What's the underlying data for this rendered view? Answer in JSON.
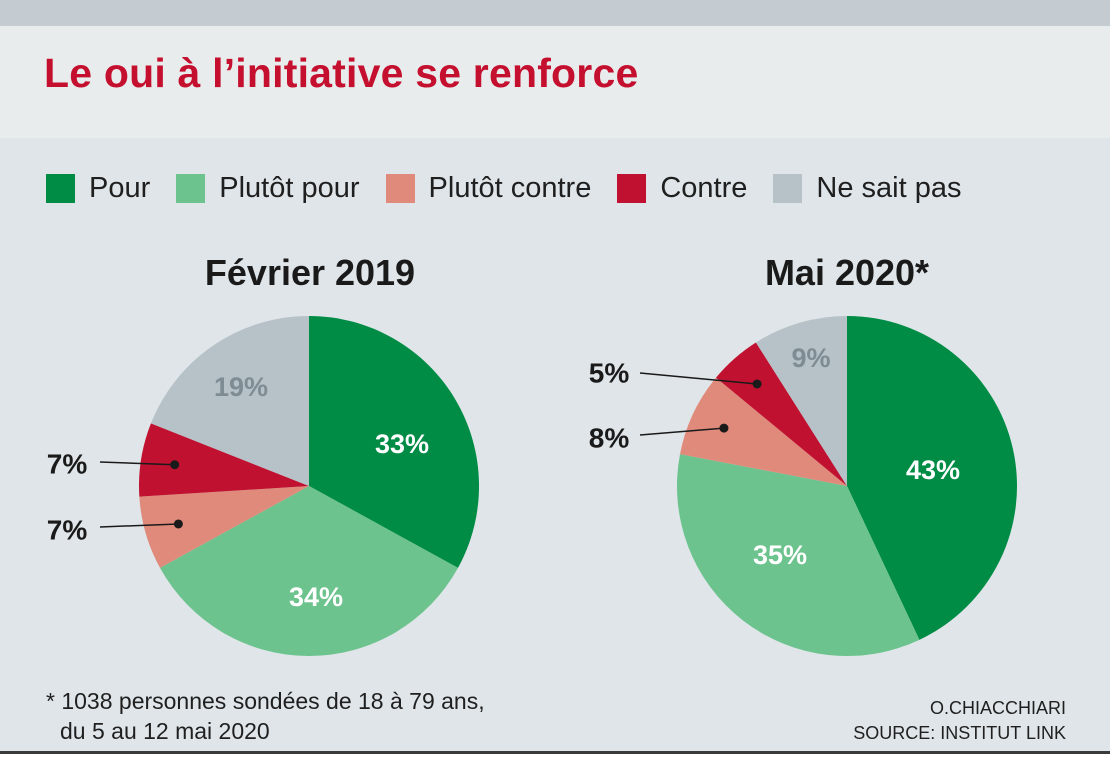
{
  "header": {
    "title": "Le oui à l’initiative se renforce"
  },
  "colors": {
    "pour": "#008c45",
    "plutot_pour": "#6cc38e",
    "plutot_contre": "#e08a7c",
    "contre": "#c01230",
    "ne_sait_pas": "#b6c1c8",
    "title": "#c4102e"
  },
  "legend": [
    {
      "label": "Pour",
      "color": "#008c45"
    },
    {
      "label": "Plutôt pour",
      "color": "#6cc38e"
    },
    {
      "label": "Plutôt contre",
      "color": "#e08a7c"
    },
    {
      "label": "Contre",
      "color": "#c01230"
    },
    {
      "label": "Ne sait pas",
      "color": "#b6c1c8"
    }
  ],
  "chart_data": [
    {
      "type": "pie",
      "title": "Février 2019",
      "categories": [
        "Pour",
        "Plutôt pour",
        "Plutôt contre",
        "Contre",
        "Ne sait pas"
      ],
      "values": [
        33,
        34,
        7,
        7,
        19
      ],
      "labels": [
        "33%",
        "34%",
        "7%",
        "7%",
        "19%"
      ]
    },
    {
      "type": "pie",
      "title": "Mai 2020*",
      "categories": [
        "Pour",
        "Plutôt pour",
        "Plutôt contre",
        "Contre",
        "Ne sait pas"
      ],
      "values": [
        43,
        35,
        8,
        5,
        9
      ],
      "labels": [
        "43%",
        "35%",
        "8%",
        "5%",
        "9%"
      ]
    }
  ],
  "footnote": {
    "line1": "* 1038 personnes sondées de 18 à 79 ans,",
    "line2": "du 5 au 12 mai 2020"
  },
  "credits": {
    "author": "O.CHIACCHIARI",
    "source": "SOURCE:  INSTITUT LINK"
  }
}
